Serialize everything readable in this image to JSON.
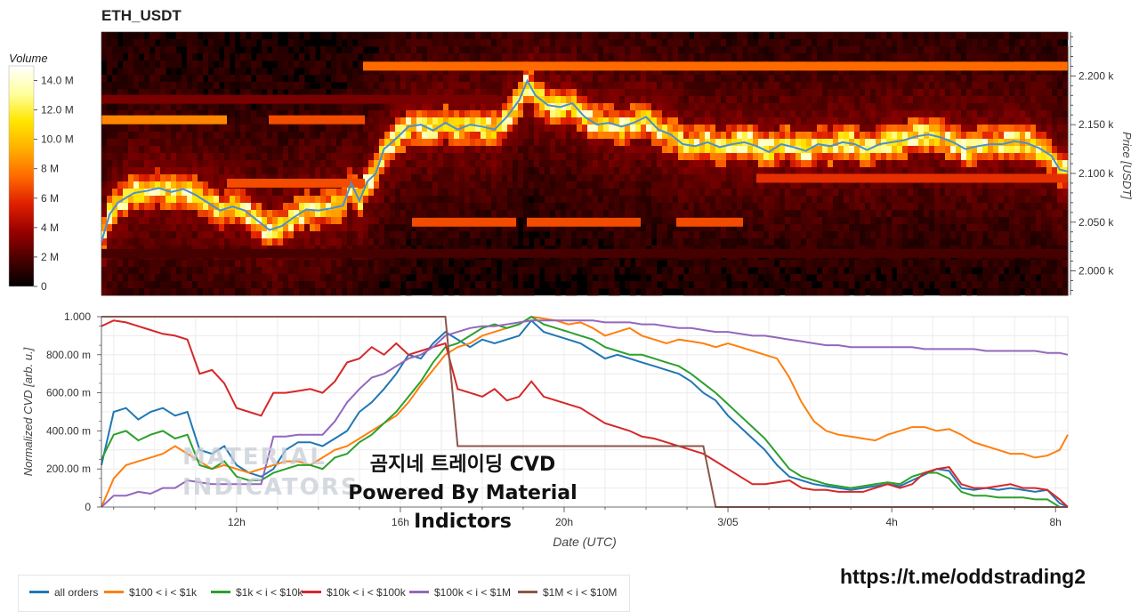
{
  "title": "ETH_USDT",
  "watermark": {
    "line1": "곰지네 트레이딩 CVD",
    "line2": "Powered By Material Indictors"
  },
  "logo_text": {
    "line1": "MATERIAL",
    "line2": "INDICATORS"
  },
  "telegram_link": "https://t.me/oddstrading2",
  "chart_data": [
    {
      "type": "heatmap",
      "title": "ETH_USDT",
      "colorbar": {
        "label": "Volume",
        "ticks": [
          "0",
          "2 M",
          "4 M",
          "6 M",
          "8 M",
          "10.0 M",
          "12.0 M",
          "14.0 M"
        ],
        "tick_values": [
          0,
          2,
          4,
          6,
          8,
          10,
          12,
          14
        ],
        "range": [
          0,
          15
        ],
        "colormap": [
          "#000000",
          "#4a0000",
          "#990000",
          "#e02000",
          "#ff6a00",
          "#ffb000",
          "#ffe600",
          "#ffffa0",
          "#ffffff"
        ]
      },
      "ylabel": "Price [USDT]",
      "yticks": [
        "2.200 k",
        "2.150 k",
        "2.100 k",
        "2.050 k",
        "2.000 k"
      ],
      "ytick_values": [
        2200,
        2150,
        2100,
        2050,
        2000
      ],
      "ylim": [
        1975,
        2245
      ],
      "xlim_hours": [
        8.7,
        32.3
      ],
      "price_line": {
        "color": "#4a8fd4",
        "x_hours": [
          8.7,
          8.9,
          9.1,
          9.3,
          9.5,
          9.8,
          10.1,
          10.4,
          10.7,
          11.0,
          11.3,
          11.6,
          11.9,
          12.2,
          12.5,
          12.8,
          13.1,
          13.4,
          13.7,
          14.0,
          14.3,
          14.6,
          14.8,
          15.0,
          15.2,
          15.4,
          15.6,
          15.8,
          16.0,
          16.2,
          16.5,
          16.8,
          17.1,
          17.4,
          17.7,
          18.0,
          18.3,
          18.6,
          18.9,
          19.1,
          19.3,
          19.6,
          19.9,
          20.2,
          20.5,
          20.8,
          21.1,
          21.4,
          21.7,
          22.0,
          22.3,
          22.6,
          22.9,
          23.2,
          23.5,
          23.8,
          24.1,
          24.4,
          24.7,
          25.0,
          25.3,
          25.6,
          25.9,
          26.2,
          26.5,
          26.8,
          27.1,
          27.4,
          27.7,
          28.0,
          28.3,
          28.6,
          28.9,
          29.2,
          29.5,
          29.8,
          30.1,
          30.4,
          30.7,
          31.0,
          31.3,
          31.6,
          31.9,
          32.1,
          32.3
        ],
        "price": [
          2030,
          2058,
          2070,
          2075,
          2080,
          2082,
          2085,
          2081,
          2084,
          2078,
          2070,
          2062,
          2066,
          2062,
          2052,
          2042,
          2046,
          2055,
          2063,
          2062,
          2064,
          2067,
          2090,
          2072,
          2092,
          2100,
          2125,
          2132,
          2140,
          2148,
          2150,
          2144,
          2152,
          2145,
          2150,
          2148,
          2145,
          2158,
          2175,
          2195,
          2180,
          2170,
          2168,
          2172,
          2158,
          2150,
          2152,
          2148,
          2152,
          2158,
          2145,
          2140,
          2130,
          2128,
          2132,
          2127,
          2130,
          2132,
          2128,
          2122,
          2130,
          2127,
          2123,
          2130,
          2128,
          2132,
          2130,
          2124,
          2130,
          2132,
          2134,
          2138,
          2140,
          2137,
          2132,
          2125,
          2128,
          2130,
          2130,
          2133,
          2131,
          2126,
          2118,
          2104,
          2102
        ]
      }
    },
    {
      "type": "line",
      "xlabel": "Date (UTC)",
      "ylabel": "Normalized CVD [arb. u.]",
      "yticks": [
        "0",
        "200.00 m",
        "400.00 m",
        "600.00 m",
        "800.00 m",
        "1.000"
      ],
      "ytick_values": [
        0,
        0.2,
        0.4,
        0.6,
        0.8,
        1.0
      ],
      "ylim": [
        0,
        1.0
      ],
      "xticks": [
        "12h",
        "16h",
        "20h",
        "3/05",
        "4h",
        "8h"
      ],
      "xtick_hours": [
        12,
        16,
        20,
        24,
        28,
        32
      ],
      "xlim_hours": [
        8.7,
        32.3
      ],
      "grid": true,
      "legend_position": "bottom",
      "x_hours": [
        8.7,
        9.0,
        9.3,
        9.6,
        9.9,
        10.2,
        10.5,
        10.8,
        11.1,
        11.4,
        11.7,
        12.0,
        12.3,
        12.6,
        12.9,
        13.2,
        13.5,
        13.8,
        14.1,
        14.4,
        14.7,
        15.0,
        15.3,
        15.6,
        15.9,
        16.2,
        16.5,
        16.8,
        17.1,
        17.4,
        17.7,
        18.0,
        18.3,
        18.6,
        18.9,
        19.2,
        19.5,
        19.8,
        20.1,
        20.4,
        20.7,
        21.0,
        21.3,
        21.6,
        21.9,
        22.2,
        22.5,
        22.8,
        23.1,
        23.4,
        23.7,
        24.0,
        24.3,
        24.6,
        24.9,
        25.2,
        25.5,
        25.8,
        26.1,
        26.4,
        26.7,
        27.0,
        27.3,
        27.6,
        27.9,
        28.2,
        28.5,
        28.8,
        29.1,
        29.4,
        29.7,
        30.0,
        30.3,
        30.6,
        30.9,
        31.2,
        31.5,
        31.8,
        32.1,
        32.3
      ],
      "series": [
        {
          "name": "all orders",
          "color": "#1f77b4",
          "values": [
            0.22,
            0.5,
            0.52,
            0.46,
            0.5,
            0.52,
            0.48,
            0.5,
            0.3,
            0.28,
            0.32,
            0.22,
            0.18,
            0.16,
            0.2,
            0.3,
            0.34,
            0.34,
            0.32,
            0.36,
            0.4,
            0.5,
            0.55,
            0.62,
            0.7,
            0.8,
            0.78,
            0.86,
            0.92,
            0.88,
            0.84,
            0.88,
            0.86,
            0.88,
            0.9,
            0.98,
            0.92,
            0.9,
            0.88,
            0.86,
            0.82,
            0.78,
            0.8,
            0.78,
            0.76,
            0.74,
            0.72,
            0.7,
            0.66,
            0.6,
            0.56,
            0.48,
            0.42,
            0.36,
            0.3,
            0.22,
            0.16,
            0.14,
            0.12,
            0.11,
            0.1,
            0.09,
            0.1,
            0.11,
            0.12,
            0.11,
            0.14,
            0.17,
            0.2,
            0.19,
            0.1,
            0.09,
            0.1,
            0.09,
            0.1,
            0.09,
            0.08,
            0.09,
            0.02,
            0.0
          ]
        },
        {
          "name": "$100 < i < $1k",
          "color": "#ff7f0e",
          "values": [
            0.0,
            0.15,
            0.22,
            0.24,
            0.26,
            0.28,
            0.32,
            0.28,
            0.24,
            0.2,
            0.22,
            0.2,
            0.18,
            0.2,
            0.22,
            0.24,
            0.24,
            0.22,
            0.26,
            0.3,
            0.32,
            0.36,
            0.4,
            0.44,
            0.48,
            0.55,
            0.64,
            0.72,
            0.8,
            0.84,
            0.86,
            0.9,
            0.92,
            0.94,
            0.96,
            1.0,
            0.99,
            0.98,
            0.96,
            0.97,
            0.94,
            0.9,
            0.92,
            0.94,
            0.9,
            0.88,
            0.86,
            0.88,
            0.87,
            0.86,
            0.84,
            0.86,
            0.84,
            0.82,
            0.8,
            0.78,
            0.68,
            0.55,
            0.45,
            0.4,
            0.38,
            0.37,
            0.36,
            0.35,
            0.38,
            0.4,
            0.42,
            0.42,
            0.4,
            0.41,
            0.38,
            0.34,
            0.32,
            0.3,
            0.28,
            0.28,
            0.26,
            0.27,
            0.3,
            0.38
          ]
        },
        {
          "name": "$1k < i < $10k",
          "color": "#2ca02c",
          "values": [
            0.25,
            0.38,
            0.4,
            0.35,
            0.38,
            0.4,
            0.36,
            0.38,
            0.22,
            0.2,
            0.24,
            0.16,
            0.14,
            0.14,
            0.18,
            0.2,
            0.22,
            0.22,
            0.2,
            0.26,
            0.28,
            0.34,
            0.38,
            0.44,
            0.5,
            0.58,
            0.66,
            0.76,
            0.84,
            0.86,
            0.9,
            0.94,
            0.96,
            0.94,
            0.96,
            1.0,
            0.96,
            0.94,
            0.92,
            0.9,
            0.88,
            0.84,
            0.82,
            0.8,
            0.8,
            0.78,
            0.76,
            0.74,
            0.7,
            0.65,
            0.6,
            0.54,
            0.48,
            0.42,
            0.36,
            0.28,
            0.2,
            0.16,
            0.14,
            0.12,
            0.11,
            0.1,
            0.11,
            0.12,
            0.13,
            0.12,
            0.16,
            0.18,
            0.18,
            0.15,
            0.08,
            0.06,
            0.06,
            0.05,
            0.05,
            0.05,
            0.04,
            0.04,
            0.0,
            0.0
          ]
        },
        {
          "name": "$10k < i < $100k",
          "color": "#d62728",
          "values": [
            0.95,
            0.98,
            0.97,
            0.95,
            0.93,
            0.91,
            0.9,
            0.88,
            0.7,
            0.72,
            0.65,
            0.52,
            0.5,
            0.48,
            0.6,
            0.6,
            0.61,
            0.62,
            0.6,
            0.66,
            0.76,
            0.78,
            0.84,
            0.8,
            0.86,
            0.8,
            0.82,
            0.84,
            0.86,
            0.62,
            0.6,
            0.58,
            0.62,
            0.56,
            0.58,
            0.66,
            0.58,
            0.56,
            0.54,
            0.52,
            0.48,
            0.44,
            0.42,
            0.4,
            0.37,
            0.36,
            0.34,
            0.32,
            0.3,
            0.28,
            0.24,
            0.2,
            0.16,
            0.12,
            0.12,
            0.13,
            0.14,
            0.1,
            0.09,
            0.09,
            0.08,
            0.08,
            0.08,
            0.1,
            0.12,
            0.1,
            0.12,
            0.18,
            0.2,
            0.21,
            0.12,
            0.1,
            0.1,
            0.11,
            0.12,
            0.1,
            0.1,
            0.09,
            0.04,
            0.0
          ]
        },
        {
          "name": "$100k < i < $1M",
          "color": "#9467bd",
          "values": [
            0.0,
            0.06,
            0.06,
            0.08,
            0.07,
            0.1,
            0.1,
            0.14,
            0.13,
            0.12,
            0.12,
            0.12,
            0.12,
            0.12,
            0.37,
            0.37,
            0.38,
            0.38,
            0.38,
            0.45,
            0.55,
            0.62,
            0.68,
            0.7,
            0.74,
            0.78,
            0.8,
            0.84,
            0.9,
            0.92,
            0.94,
            0.95,
            0.95,
            0.96,
            0.97,
            0.98,
            0.98,
            0.98,
            0.98,
            0.98,
            0.98,
            0.97,
            0.97,
            0.97,
            0.96,
            0.96,
            0.95,
            0.94,
            0.94,
            0.93,
            0.92,
            0.92,
            0.91,
            0.9,
            0.9,
            0.89,
            0.88,
            0.87,
            0.86,
            0.85,
            0.85,
            0.84,
            0.84,
            0.84,
            0.84,
            0.84,
            0.84,
            0.83,
            0.83,
            0.83,
            0.83,
            0.83,
            0.82,
            0.82,
            0.82,
            0.82,
            0.82,
            0.81,
            0.81,
            0.8
          ]
        },
        {
          "name": "$1M < i < $10M",
          "color": "#8c564b",
          "values": [
            1.0,
            1.0,
            1.0,
            1.0,
            1.0,
            1.0,
            1.0,
            1.0,
            1.0,
            1.0,
            1.0,
            1.0,
            1.0,
            1.0,
            1.0,
            1.0,
            1.0,
            1.0,
            1.0,
            1.0,
            1.0,
            1.0,
            1.0,
            1.0,
            1.0,
            1.0,
            1.0,
            1.0,
            1.0,
            0.32,
            0.32,
            0.32,
            0.32,
            0.32,
            0.32,
            0.32,
            0.32,
            0.32,
            0.32,
            0.32,
            0.32,
            0.32,
            0.32,
            0.32,
            0.32,
            0.32,
            0.32,
            0.32,
            0.32,
            0.32,
            0.0,
            0.0,
            0.0,
            0.0,
            0.0,
            0.0,
            0.0,
            0.0,
            0.0,
            0.0,
            0.0,
            0.0,
            0.0,
            0.0,
            0.0,
            0.0,
            0.0,
            0.0,
            0.0,
            0.0,
            0.0,
            0.0,
            0.0,
            0.0,
            0.0,
            0.0,
            0.0,
            0.0,
            0.0,
            0.0
          ]
        }
      ]
    }
  ]
}
